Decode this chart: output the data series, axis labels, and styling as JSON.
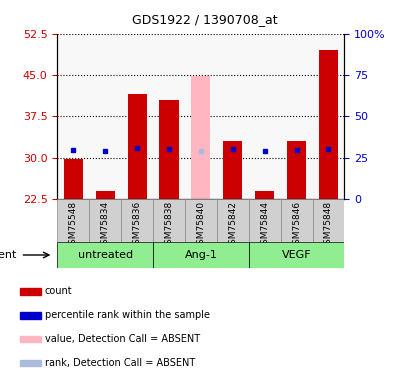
{
  "title": "GDS1922 / 1390708_at",
  "samples": [
    "GSM75548",
    "GSM75834",
    "GSM75836",
    "GSM75838",
    "GSM75840",
    "GSM75842",
    "GSM75844",
    "GSM75846",
    "GSM75848"
  ],
  "group_spans": [
    {
      "label": "untreated",
      "start": 0,
      "end": 2
    },
    {
      "label": "Ang-1",
      "start": 3,
      "end": 5
    },
    {
      "label": "VEGF",
      "start": 6,
      "end": 8
    }
  ],
  "count_values": [
    29.8,
    24.0,
    41.5,
    40.5,
    44.8,
    33.0,
    24.0,
    33.0,
    49.5
  ],
  "rank_values": [
    29.7,
    28.7,
    30.8,
    30.2,
    28.8,
    30.0,
    28.7,
    29.5,
    30.4
  ],
  "absent_mask": [
    false,
    false,
    false,
    false,
    true,
    false,
    false,
    false,
    false
  ],
  "ylim_left": [
    22.5,
    52.5
  ],
  "ylim_right": [
    0,
    100
  ],
  "yticks_left": [
    22.5,
    30.0,
    37.5,
    45.0,
    52.5
  ],
  "yticks_right": [
    0,
    25,
    50,
    75,
    100
  ],
  "bar_color": "#CC0000",
  "bar_absent_color": "#FFB6C1",
  "rank_color": "#0000CC",
  "rank_absent_color": "#AABBDD",
  "plot_bg_color": "#F8F8F8",
  "sample_box_color": "#D0D0D0",
  "group_bar_color": "#90EE90",
  "title_color": "black",
  "left_axis_color": "#CC0000",
  "right_axis_color": "#0000CC",
  "agent_label": "agent",
  "legend_items": [
    {
      "color": "#CC0000",
      "label": "count"
    },
    {
      "color": "#0000CC",
      "label": "percentile rank within the sample"
    },
    {
      "color": "#FFB6C1",
      "label": "value, Detection Call = ABSENT"
    },
    {
      "color": "#AABBDD",
      "label": "rank, Detection Call = ABSENT"
    }
  ]
}
